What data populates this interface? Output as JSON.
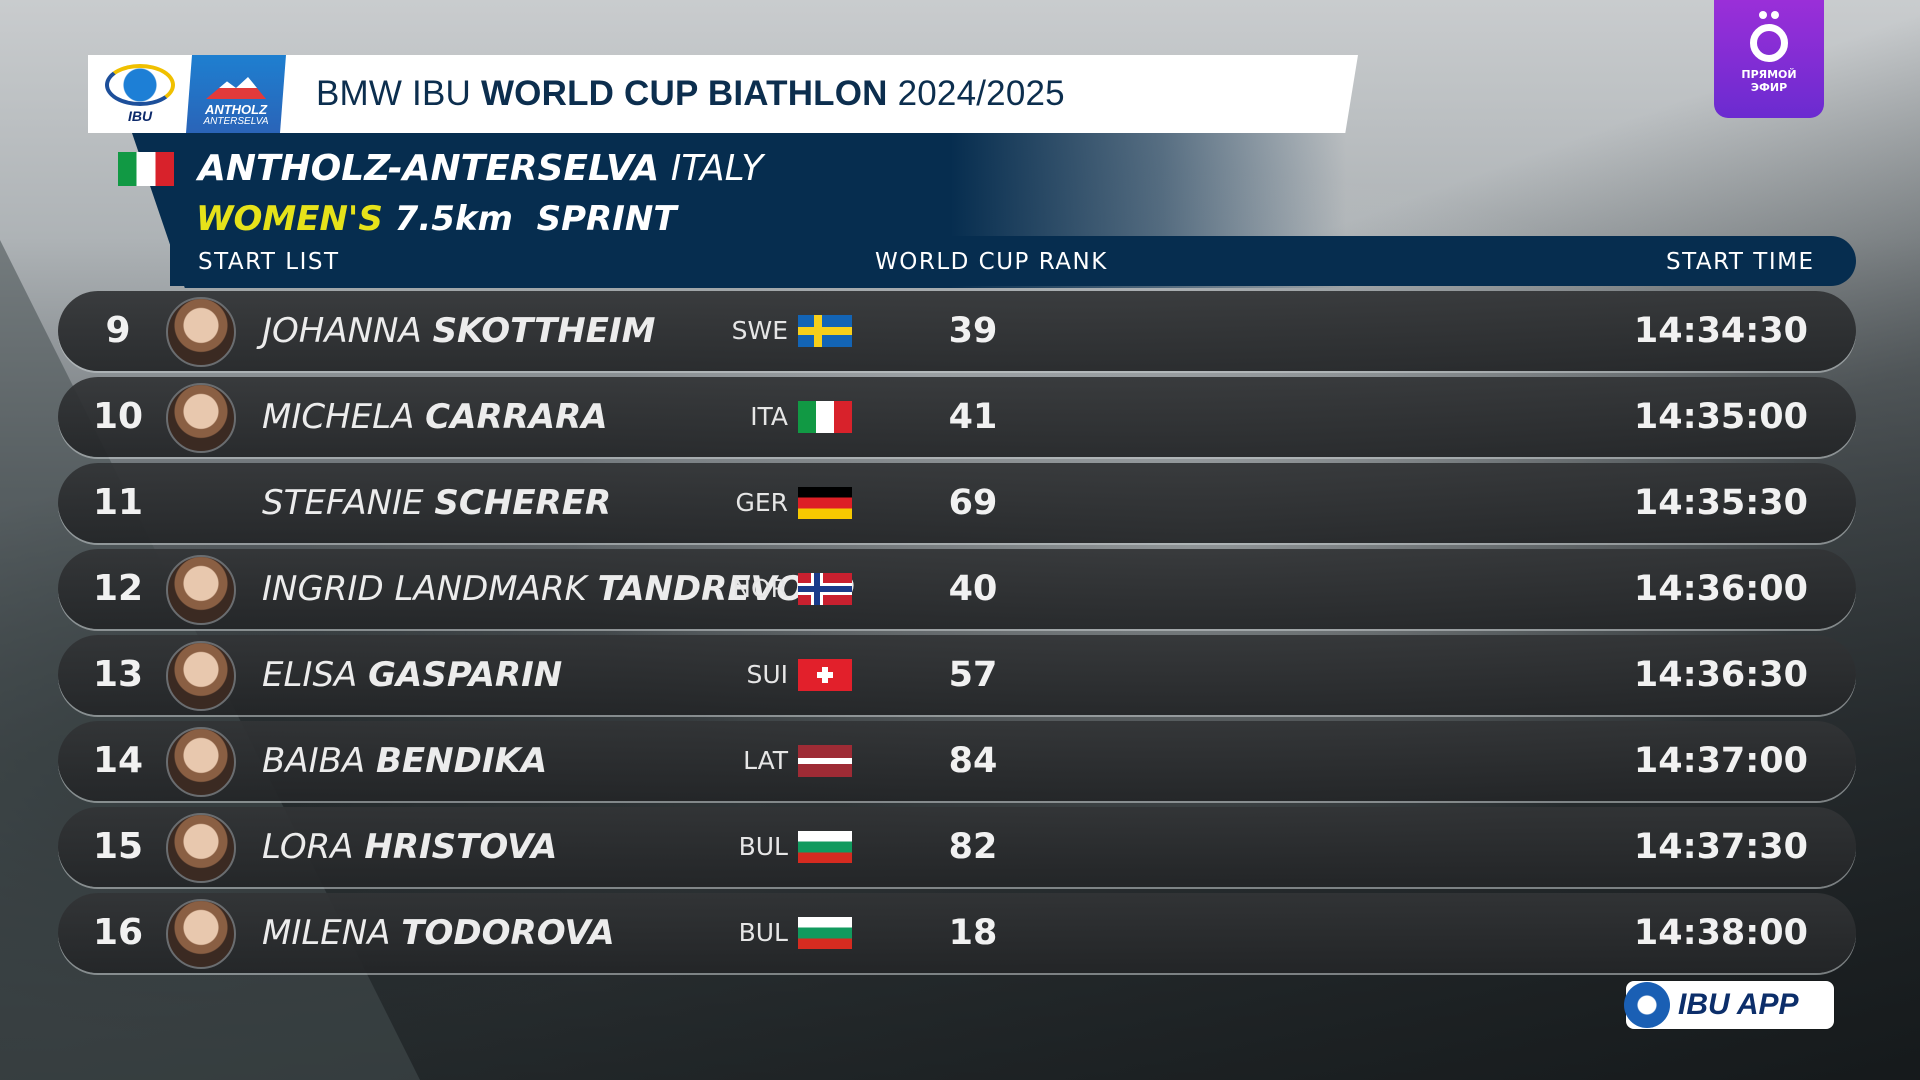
{
  "header": {
    "logo_ibu_text": "IBU",
    "logo_antholz_line1": "ANTHOLZ",
    "logo_antholz_line2": "ANTERSELVA",
    "title_prefix": "BMW IBU ",
    "title_bold": "WORLD CUP BIATHLON",
    "title_season": " 2024/2025"
  },
  "event": {
    "venue": "ANTHOLZ-ANTERSELVA",
    "country": "ITALY",
    "category": "WOMEN'S",
    "distance": "7.5km",
    "discipline": "SPRINT"
  },
  "columns": {
    "list": "START  LIST",
    "rank": "WORLD  CUP  RANK",
    "time": "START  TIME"
  },
  "rows": [
    {
      "bib": "9",
      "first": "JOHANNA",
      "last": "SKOTTHEIM",
      "nat": "SWE",
      "flag": "swe",
      "rank": "39",
      "time": "14:34:30",
      "photo": true
    },
    {
      "bib": "10",
      "first": "MICHELA",
      "last": "CARRARA",
      "nat": "ITA",
      "flag": "ita",
      "rank": "41",
      "time": "14:35:00",
      "photo": true
    },
    {
      "bib": "11",
      "first": "STEFANIE",
      "last": "SCHERER",
      "nat": "GER",
      "flag": "ger",
      "rank": "69",
      "time": "14:35:30",
      "photo": false
    },
    {
      "bib": "12",
      "first": "INGRID  LANDMARK",
      "last": "TANDREVOLD",
      "nat": "NOR",
      "flag": "nor",
      "rank": "40",
      "time": "14:36:00",
      "photo": true
    },
    {
      "bib": "13",
      "first": "ELISA",
      "last": "GASPARIN",
      "nat": "SUI",
      "flag": "sui",
      "rank": "57",
      "time": "14:36:30",
      "photo": true
    },
    {
      "bib": "14",
      "first": "BAIBA",
      "last": "BENDIKA",
      "nat": "LAT",
      "flag": "lat",
      "rank": "84",
      "time": "14:37:00",
      "photo": true
    },
    {
      "bib": "15",
      "first": "LORA",
      "last": "HRISTOVA",
      "nat": "BUL",
      "flag": "bul",
      "rank": "82",
      "time": "14:37:30",
      "photo": true
    },
    {
      "bib": "16",
      "first": "MILENA",
      "last": "TODOROVA",
      "nat": "BUL",
      "flag": "bul",
      "rank": "18",
      "time": "14:38:00",
      "photo": true
    }
  ],
  "channel": {
    "line1": "ПРЯМОЙ",
    "line2": "ЭФИР"
  },
  "app_badge": "IBU APP"
}
